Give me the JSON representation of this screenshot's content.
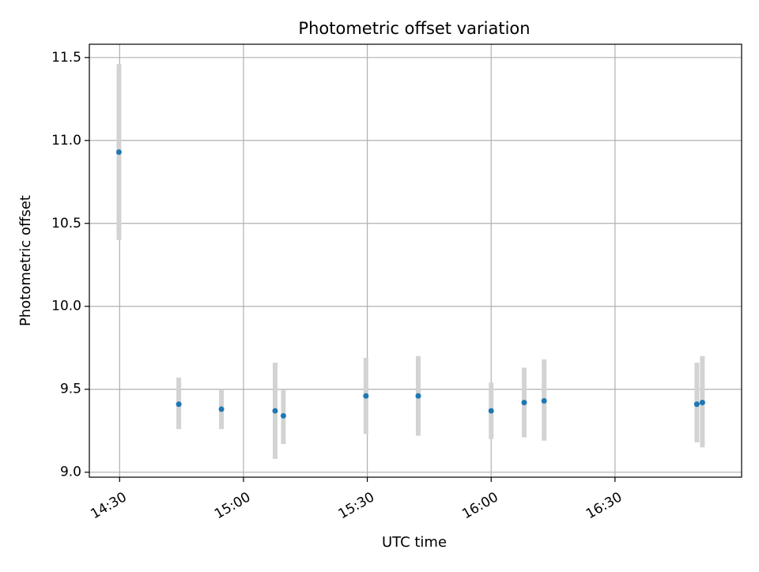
{
  "chart_data": {
    "type": "scatter",
    "title": "Photometric offset variation",
    "xlabel": "UTC time",
    "ylabel": "Photometric offset",
    "x_scale": "time",
    "xlim": [
      "14:22:40",
      "17:00:40"
    ],
    "ylim": [
      8.97,
      11.58
    ],
    "x_ticks": [
      "14:30",
      "15:00",
      "15:30",
      "16:00",
      "16:30"
    ],
    "y_ticks": [
      "9.0",
      "9.5",
      "10.0",
      "10.5",
      "11.0",
      "11.5"
    ],
    "grid": true,
    "legend": "none",
    "series": [
      {
        "marker_color": "#1f77b4",
        "errorbar_color": "#d3d3d3",
        "points": [
          {
            "x": "14:29:50",
            "y": 10.93,
            "yerr_low": 10.4,
            "yerr_high": 11.46
          },
          {
            "x": "14:44:20",
            "y": 9.41,
            "yerr_low": 9.26,
            "yerr_high": 9.57
          },
          {
            "x": "14:54:40",
            "y": 9.38,
            "yerr_low": 9.26,
            "yerr_high": 9.5
          },
          {
            "x": "15:07:40",
            "y": 9.37,
            "yerr_low": 9.08,
            "yerr_high": 9.66
          },
          {
            "x": "15:09:40",
            "y": 9.34,
            "yerr_low": 9.17,
            "yerr_high": 9.5
          },
          {
            "x": "15:29:40",
            "y": 9.46,
            "yerr_low": 9.23,
            "yerr_high": 9.69
          },
          {
            "x": "15:42:20",
            "y": 9.46,
            "yerr_low": 9.22,
            "yerr_high": 9.7
          },
          {
            "x": "16:00:00",
            "y": 9.37,
            "yerr_low": 9.2,
            "yerr_high": 9.54
          },
          {
            "x": "16:08:00",
            "y": 9.42,
            "yerr_low": 9.21,
            "yerr_high": 9.63
          },
          {
            "x": "16:12:50",
            "y": 9.43,
            "yerr_low": 9.19,
            "yerr_high": 9.68
          },
          {
            "x": "16:49:50",
            "y": 9.41,
            "yerr_low": 9.18,
            "yerr_high": 9.66
          },
          {
            "x": "16:51:10",
            "y": 9.42,
            "yerr_low": 9.15,
            "yerr_high": 9.7
          }
        ]
      }
    ]
  }
}
